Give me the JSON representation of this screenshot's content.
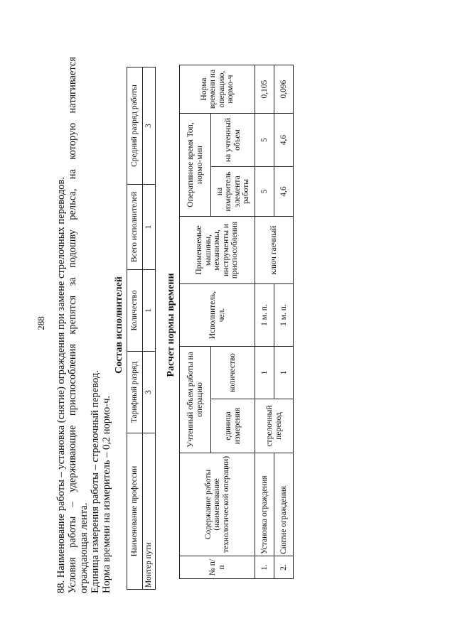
{
  "page_number": "288",
  "paragraphs": {
    "line1": "88. Наименование работы – установка (снятие) ограждения при замене стрелочных переводов.",
    "line2": "Условия работы – удерживающие приспособления крепятся за подошву рельса, на которую натягивается",
    "line3": "ограждающая лента.",
    "line4": "Единица измерения работы – стрелочный перевод.",
    "line5": "Норма времени на измеритель – 0,2 нормо-ч."
  },
  "staff_table": {
    "title": "Состав исполнителей",
    "headers": [
      "Наименование профессии",
      "Тарифный разряд",
      "Количество",
      "Всего исполнителей",
      "Средний разряд работы"
    ],
    "row": [
      "Монтер пути",
      "3",
      "1",
      "1",
      "3"
    ]
  },
  "norm_table": {
    "title": "Расчет нормы времени",
    "headers": {
      "num": "№ п/п",
      "content": "Содержание работы (наименование технологической операции)",
      "volume": "Учтенный объем работы на операцию",
      "volume_unit": "единица измерения",
      "volume_qty": "количество",
      "performer": "Исполнитель, чел.",
      "tools": "Применяемые машины, механизмы, инструменты и приспособления",
      "optime": "Оперативное время Топ, нормо-мин",
      "optime_unit": "на измеритель элемента работы",
      "optime_volume": "на учтенный объем",
      "norm": "Норма времени на операцию, нормо-ч"
    },
    "rows": [
      {
        "num": "1.",
        "content": "Установка ограждения",
        "qty": "1",
        "performer": "1 м. п.",
        "op_unit": "5",
        "op_volume": "5",
        "norm": "0,105"
      },
      {
        "num": "2.",
        "content": "Снятие ограждения",
        "qty": "1",
        "performer": "1 м. п.",
        "op_unit": "4,6",
        "op_volume": "4,6",
        "norm": "0,096"
      }
    ],
    "shared_unit": "стрелочный перевод",
    "shared_tools": "ключ гаечный"
  }
}
